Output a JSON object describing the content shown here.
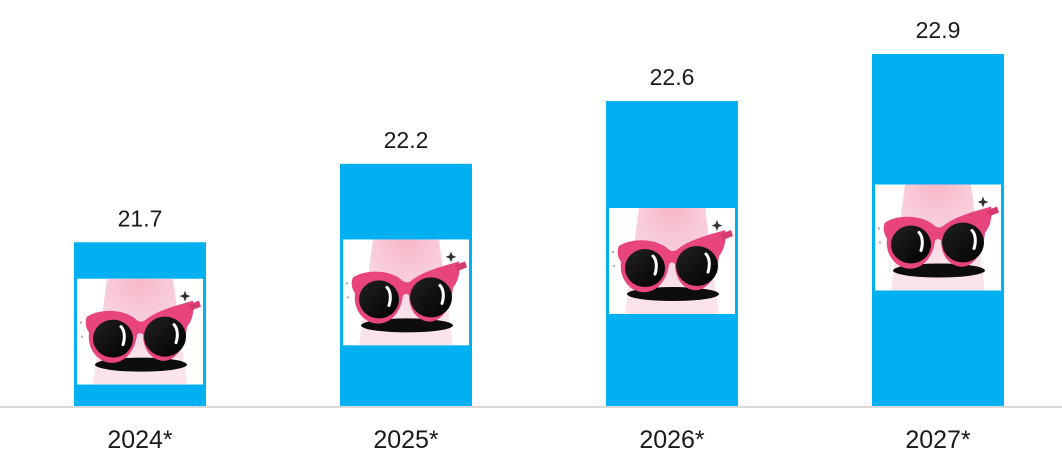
{
  "chart_data": {
    "type": "bar",
    "categories": [
      "2024*",
      "2025*",
      "2026*",
      "2027*"
    ],
    "values": [
      21.7,
      22.2,
      22.6,
      22.9
    ],
    "value_labels": [
      "21.7",
      "22.2",
      "22.6",
      "22.9"
    ],
    "title": "",
    "xlabel": "",
    "ylabel": "",
    "ylim": [
      20.65,
      22.9
    ],
    "grid": false,
    "legend": "none",
    "bar_color": "#00b0f0",
    "axis_color": "#d9d9d9",
    "bar_image_icon": "pink-cat-eye-sunglasses-icon"
  }
}
